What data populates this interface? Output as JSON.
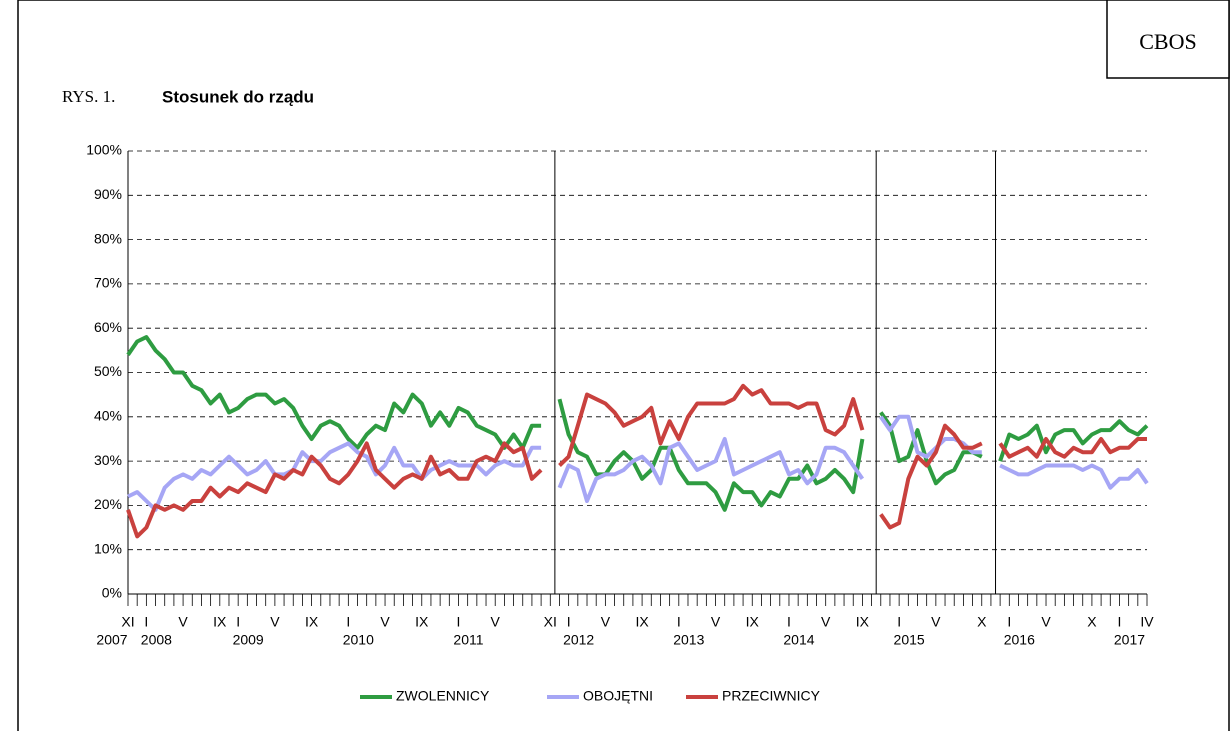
{
  "chart_data": {
    "type": "line",
    "header": "CBOS",
    "figure_label": "RYS. 1.",
    "title": "Stosunek do rządu",
    "categories": [
      "XI",
      null,
      "I",
      null,
      null,
      null,
      "V",
      null,
      null,
      null,
      "IX",
      null,
      "I",
      null,
      null,
      null,
      "V",
      null,
      null,
      null,
      "IX",
      null,
      null,
      null,
      "I",
      null,
      null,
      null,
      "V",
      null,
      null,
      null,
      "IX",
      null,
      null,
      null,
      "I",
      null,
      null,
      null,
      "V",
      null,
      null,
      null,
      null,
      null,
      "XI",
      null,
      "I",
      null,
      null,
      null,
      "V",
      null,
      null,
      null,
      "IX",
      null,
      null,
      null,
      "I",
      null,
      null,
      null,
      "V",
      null,
      null,
      null,
      "IX",
      null,
      null,
      null,
      "I",
      null,
      null,
      null,
      "V",
      null,
      null,
      null,
      "IX",
      null,
      null,
      null,
      "I",
      null,
      null,
      null,
      "V",
      null,
      null,
      null,
      null,
      "X",
      null,
      null,
      "I",
      null,
      null,
      null,
      "V",
      null,
      null,
      null,
      null,
      "X",
      null,
      null,
      "I",
      null,
      null,
      "IV"
    ],
    "category_years": [
      "2007",
      null,
      "2008",
      null,
      null,
      null,
      null,
      null,
      null,
      null,
      null,
      null,
      "2009",
      null,
      null,
      null,
      null,
      null,
      null,
      null,
      null,
      null,
      null,
      null,
      "2010",
      null,
      null,
      null,
      null,
      null,
      null,
      null,
      null,
      null,
      null,
      null,
      "2011",
      null,
      null,
      null,
      null,
      null,
      null,
      null,
      null,
      null,
      null,
      null,
      "2012",
      null,
      null,
      null,
      null,
      null,
      null,
      null,
      null,
      null,
      null,
      null,
      "2013",
      null,
      null,
      null,
      null,
      null,
      null,
      null,
      null,
      null,
      null,
      null,
      "2014",
      null,
      null,
      null,
      null,
      null,
      null,
      null,
      null,
      null,
      null,
      null,
      "2015",
      null,
      null,
      null,
      null,
      null,
      null,
      null,
      null,
      null,
      null,
      null,
      "2016",
      null,
      null,
      null,
      null,
      null,
      null,
      null,
      null,
      null,
      null,
      null,
      "2017",
      null,
      null,
      null
    ],
    "dividers": [
      46,
      81,
      94
    ],
    "series": [
      {
        "name": "ZWOLENNICY",
        "color": "#2e9c41",
        "values": [
          54,
          57,
          58,
          55,
          53,
          50,
          50,
          47,
          46,
          43,
          45,
          41,
          42,
          44,
          45,
          45,
          43,
          44,
          42,
          38,
          35,
          38,
          39,
          38,
          35,
          33,
          36,
          38,
          37,
          43,
          41,
          45,
          43,
          38,
          41,
          38,
          42,
          41,
          38,
          37,
          36,
          33,
          36,
          33,
          38,
          38,
          null,
          44,
          36,
          32,
          31,
          27,
          27,
          30,
          32,
          30,
          26,
          28,
          33,
          33,
          28,
          25,
          25,
          25,
          23,
          19,
          25,
          23,
          23,
          20,
          23,
          22,
          26,
          26,
          29,
          25,
          26,
          28,
          26,
          23,
          35,
          null,
          41,
          38,
          30,
          31,
          37,
          30,
          25,
          27,
          28,
          32,
          32,
          31,
          null,
          30,
          36,
          35,
          36,
          38,
          32,
          36,
          37,
          37,
          34,
          36,
          37,
          37,
          39,
          37,
          36,
          38
        ]
      },
      {
        "name": "OBOJĘTNI",
        "color": "#a6a6f5",
        "values": [
          22,
          23,
          21,
          19,
          24,
          26,
          27,
          26,
          28,
          27,
          29,
          31,
          29,
          27,
          28,
          30,
          27,
          27,
          28,
          32,
          30,
          30,
          32,
          33,
          34,
          32,
          31,
          27,
          29,
          33,
          29,
          29,
          26,
          28,
          29,
          30,
          29,
          29,
          29,
          27,
          29,
          30,
          29,
          29,
          33,
          33,
          null,
          24,
          29,
          28,
          21,
          26,
          27,
          27,
          28,
          30,
          31,
          29,
          25,
          33,
          34,
          31,
          28,
          29,
          30,
          35,
          27,
          28,
          29,
          30,
          31,
          32,
          27,
          28,
          25,
          27,
          33,
          33,
          32,
          29,
          26,
          null,
          40,
          37,
          40,
          40,
          32,
          31,
          33,
          35,
          35,
          34,
          32,
          32,
          null,
          29,
          28,
          27,
          27,
          28,
          29,
          29,
          29,
          29,
          28,
          29,
          28,
          24,
          26,
          26,
          28,
          25
        ]
      },
      {
        "name": "PRZECIWNICY",
        "color": "#c9413e",
        "values": [
          19,
          13,
          15,
          20,
          19,
          20,
          19,
          21,
          21,
          24,
          22,
          24,
          23,
          25,
          24,
          23,
          27,
          26,
          28,
          27,
          31,
          29,
          26,
          25,
          27,
          30,
          34,
          28,
          26,
          24,
          26,
          27,
          26,
          31,
          27,
          28,
          26,
          26,
          30,
          31,
          30,
          34,
          32,
          33,
          26,
          28,
          null,
          29,
          31,
          38,
          45,
          44,
          43,
          41,
          38,
          39,
          40,
          42,
          34,
          39,
          35,
          40,
          43,
          43,
          43,
          43,
          44,
          47,
          45,
          46,
          43,
          43,
          43,
          42,
          43,
          43,
          37,
          36,
          38,
          44,
          37,
          null,
          18,
          15,
          16,
          26,
          31,
          29,
          32,
          38,
          36,
          33,
          33,
          34,
          null,
          34,
          31,
          32,
          33,
          31,
          35,
          32,
          31,
          33,
          32,
          32,
          35,
          32,
          33,
          33,
          35,
          35
        ]
      }
    ],
    "ylim": [
      0,
      100
    ],
    "yticks": [
      {
        "value": 0,
        "label": "0%"
      },
      {
        "value": 10,
        "label": "10%"
      },
      {
        "value": 20,
        "label": "20%"
      },
      {
        "value": 30,
        "label": "30%"
      },
      {
        "value": 40,
        "label": "40%"
      },
      {
        "value": 50,
        "label": "50%"
      },
      {
        "value": 60,
        "label": "60%"
      },
      {
        "value": 70,
        "label": "70%"
      },
      {
        "value": 80,
        "label": "80%"
      },
      {
        "value": 90,
        "label": "90%"
      },
      {
        "value": 100,
        "label": "100%"
      }
    ],
    "grid": true
  }
}
